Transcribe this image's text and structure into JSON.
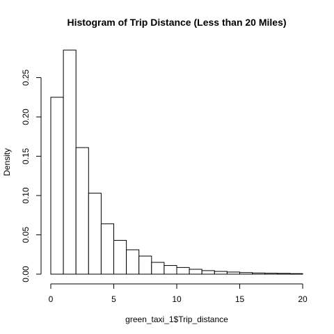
{
  "chart_data": {
    "type": "bar",
    "title": "Histogram of Trip Distance (Less than 20 Miles)",
    "xlabel": "green_taxi_1$Trip_distance",
    "ylabel": "Density",
    "bin_edges": [
      0,
      1,
      2,
      3,
      4,
      5,
      6,
      7,
      8,
      9,
      10,
      11,
      12,
      13,
      14,
      15,
      16,
      17,
      18,
      19,
      20
    ],
    "values": [
      0.225,
      0.285,
      0.161,
      0.103,
      0.064,
      0.043,
      0.031,
      0.023,
      0.015,
      0.011,
      0.0085,
      0.0062,
      0.0045,
      0.0035,
      0.0027,
      0.002,
      0.0015,
      0.0012,
      0.001,
      0.0007
    ],
    "xlim": [
      0,
      20
    ],
    "ylim": [
      0,
      0.285
    ],
    "x_ticks": [
      0,
      5,
      10,
      15,
      20
    ],
    "x_tick_labels": [
      "0",
      "5",
      "10",
      "15",
      "20"
    ],
    "y_ticks": [
      0,
      0.05,
      0.1,
      0.15,
      0.2,
      0.25
    ],
    "y_tick_labels": [
      "0.00",
      "0.05",
      "0.10",
      "0.15",
      "0.20",
      "0.25"
    ],
    "grid": false,
    "colors": {
      "fill": "#ffffff",
      "stroke": "#000000"
    }
  }
}
